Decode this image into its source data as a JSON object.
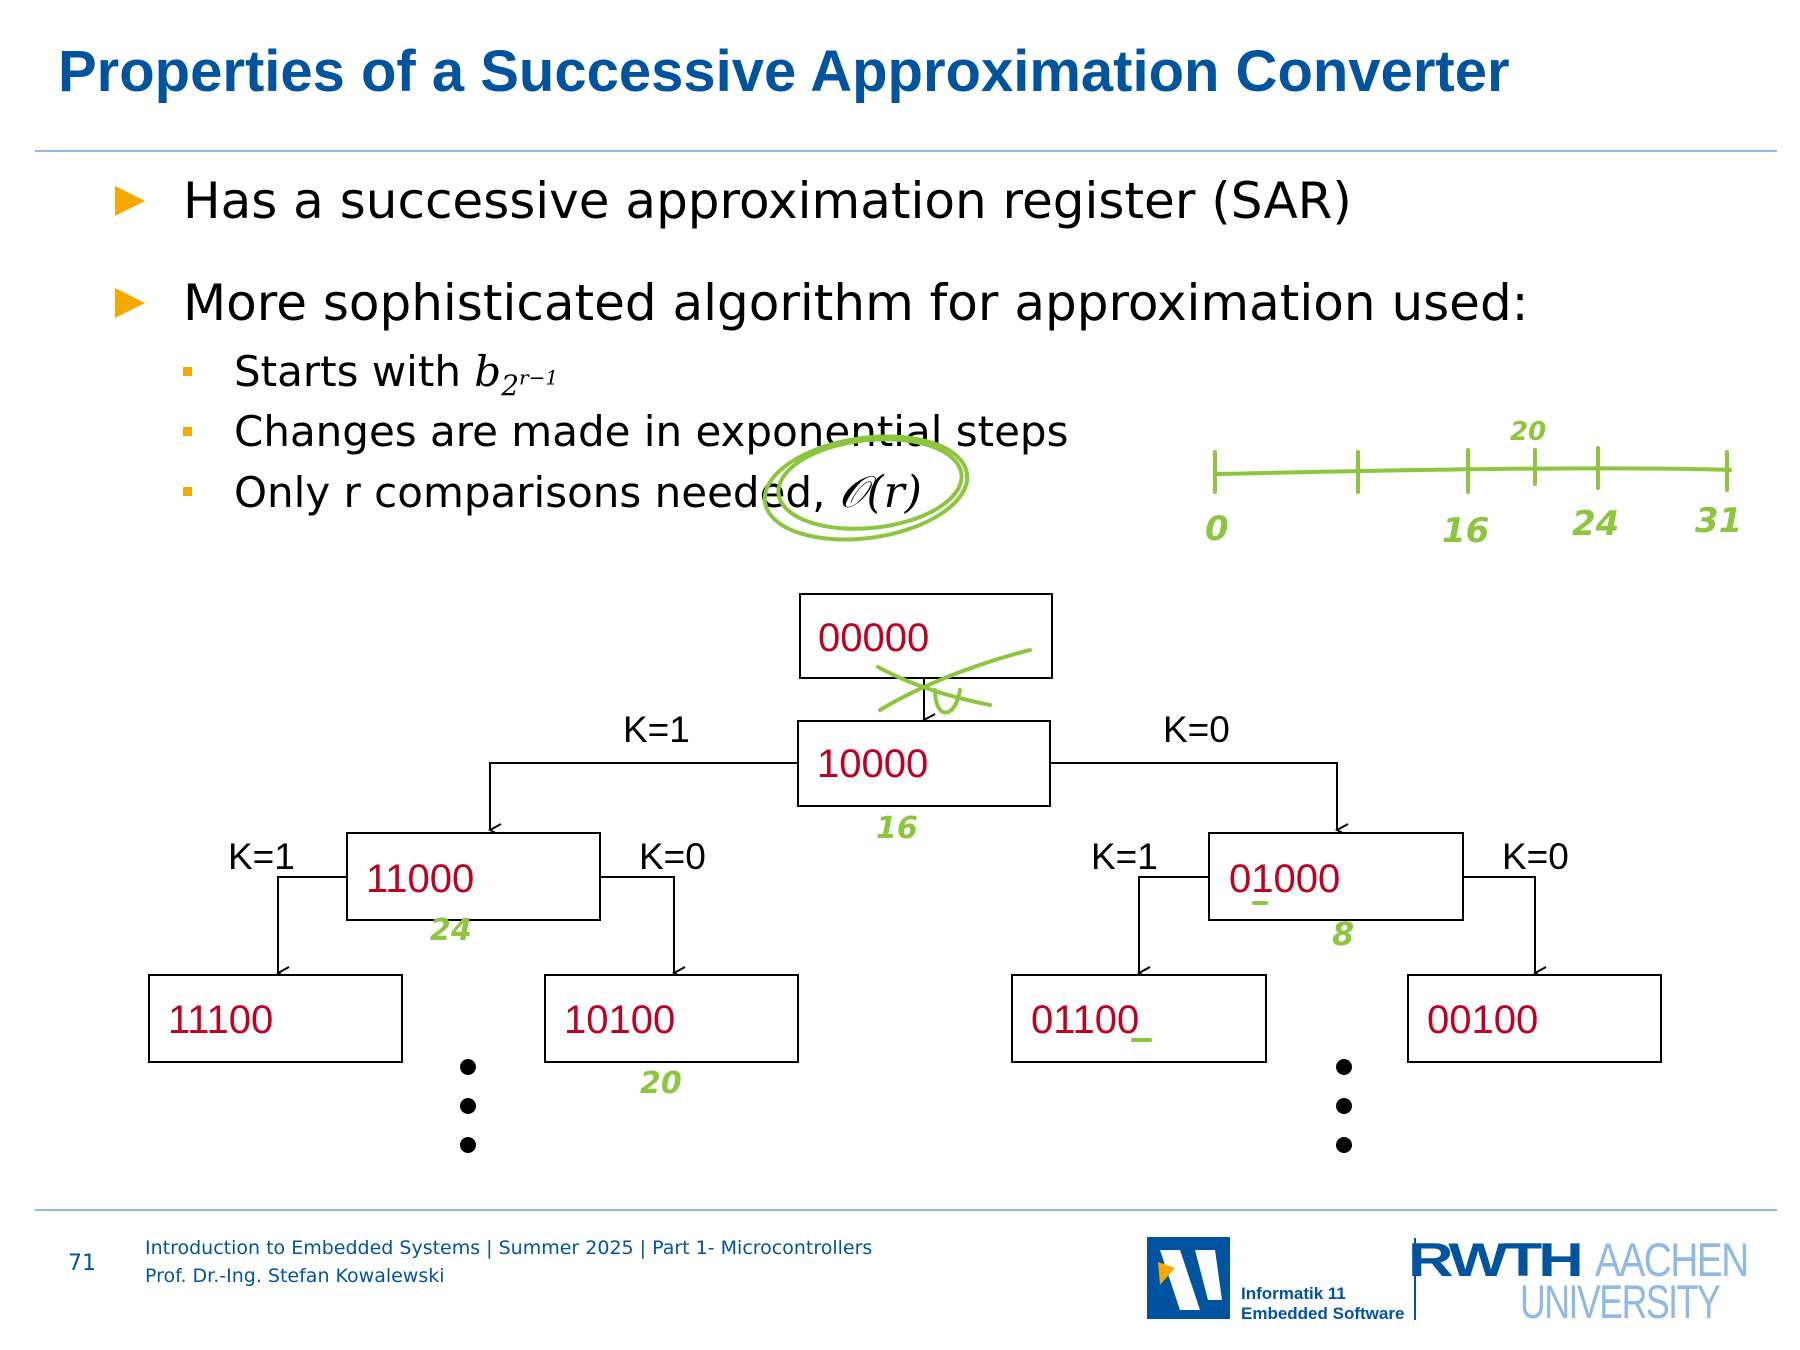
{
  "slide": {
    "title": "Properties of a Successive Approximation Converter",
    "bullets": [
      "Has a successive approximation register (SAR)",
      "More sophisticated algorithm for approximation used:"
    ],
    "subbullets": {
      "starts_with_prefix": "Starts with ",
      "starts_with_var": "b",
      "starts_with_sub_base": "2",
      "starts_with_sub_exp": "r−1",
      "exponential_steps": "Changes are made in exponential steps",
      "comparisons_prefix": "Only r comparisons needed, ",
      "comparisons_math": "𝒪(r)"
    }
  },
  "diagram": {
    "nodes": {
      "root": "00000",
      "level1": "10000",
      "left2": "11000",
      "right2": "01000",
      "leaf1": "11100",
      "leaf2": "10100",
      "leaf3": "01100",
      "leaf4": "00100"
    },
    "edge_labels": {
      "top_left": "K=1",
      "top_right": "K=0",
      "left_left": "K=1",
      "left_right": "K=0",
      "right_left": "K=1",
      "right_right": "K=0"
    },
    "colors": {
      "node_text": "#C00020",
      "annotation": "#8CC63F",
      "accent": "#F6A800",
      "brand": "#00549F"
    }
  },
  "annotations": {
    "number_line": [
      "0",
      "16",
      "24",
      "31"
    ],
    "number_line_top": "20",
    "node_values": {
      "level1": "16",
      "left2": "24",
      "right2": "8",
      "leaf2": "20"
    }
  },
  "footer": {
    "page_number": "71",
    "line1": "Introduction to Embedded Systems | Summer 2025 | Part 1- Microcontrollers",
    "line2": "Prof. Dr.-Ing. Stefan Kowalewski",
    "institute_line1": "Informatik 11",
    "institute_line2": "Embedded Software",
    "uni_rwth": "RWTH",
    "uni_aachen": "AACHEN",
    "uni_university": "UNIVERSITY"
  }
}
